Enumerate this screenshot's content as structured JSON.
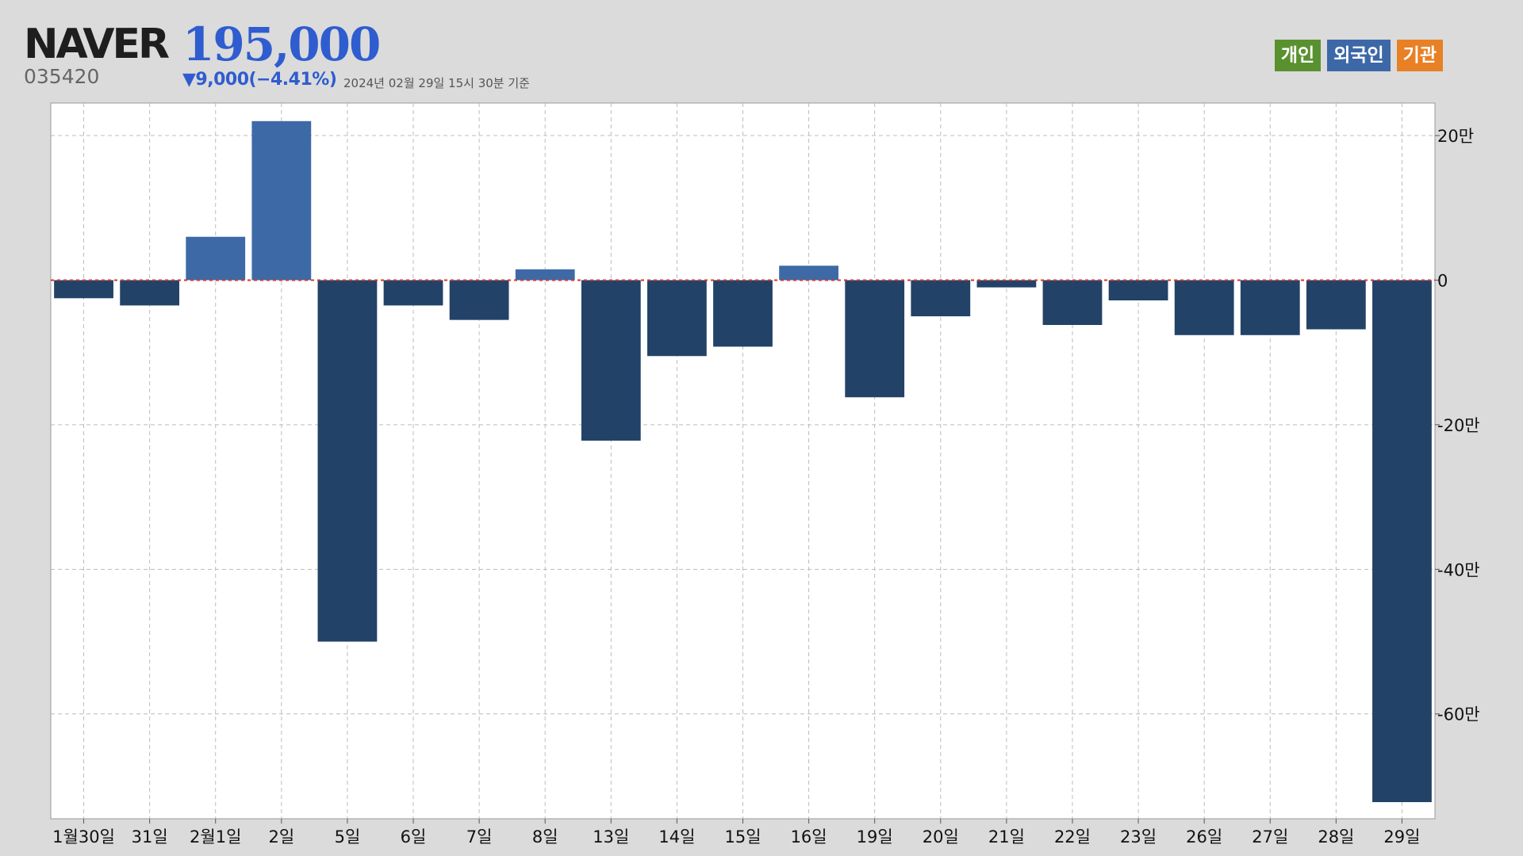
{
  "stock": {
    "name": "NAVER",
    "code": "035420",
    "price": "195,000",
    "change": "▼9,000(−4.41%)",
    "asof": "2024년 02월 29일 15시 30분 기준"
  },
  "legend": [
    {
      "label": "개인",
      "color": "#5a9130"
    },
    {
      "label": "외국인",
      "color": "#3d68a8"
    },
    {
      "label": "기관",
      "color": "#e88025"
    }
  ],
  "colors": {
    "positive": "#3d6aa7",
    "negative": "#234268",
    "zero_line": "#d9342b",
    "grid": "#bcbcbc"
  },
  "chart_data": {
    "type": "bar",
    "series": [
      {
        "name": "외국인",
        "values": [
          -25000,
          -35000,
          60000,
          220000,
          -500000,
          -35000,
          -55000,
          15000,
          -222000,
          -105000,
          -92000,
          20000,
          -162000,
          -50000,
          -10000,
          -62000,
          -28000,
          -76000,
          -76000,
          -68000,
          -722000
        ]
      }
    ],
    "categories": [
      "1월30일",
      "31일",
      "2월1일",
      "2일",
      "5일",
      "6일",
      "7일",
      "8일",
      "13일",
      "14일",
      "15일",
      "16일",
      "19일",
      "20일",
      "21일",
      "22일",
      "23일",
      "26일",
      "27일",
      "28일",
      "29일"
    ],
    "y_ticks": [
      {
        "value": 200000,
        "label": "20만"
      },
      {
        "value": 0,
        "label": "0"
      },
      {
        "value": -200000,
        "label": "-20만"
      },
      {
        "value": -400000,
        "label": "-40만"
      },
      {
        "value": -600000,
        "label": "-60만"
      }
    ],
    "ylim": [
      -745000,
      245000
    ],
    "y_axis_position": "right",
    "grid": true,
    "legend_position": "top-right"
  }
}
